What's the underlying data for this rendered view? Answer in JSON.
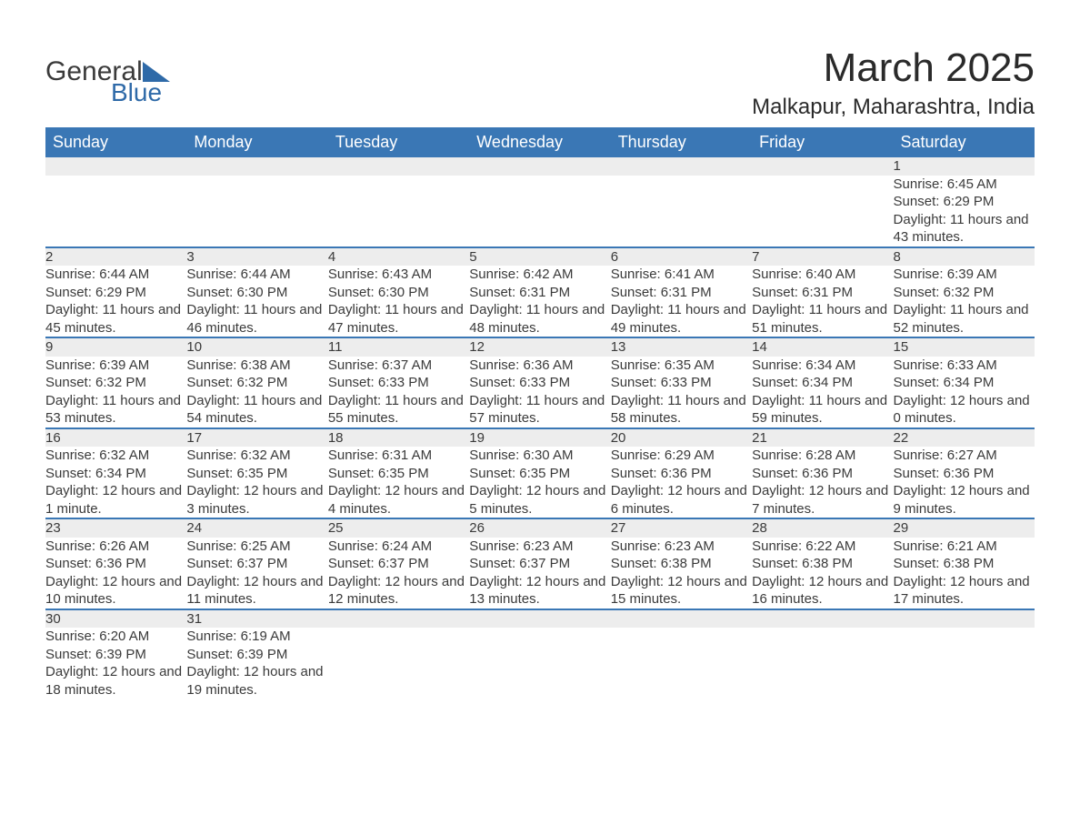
{
  "logo": {
    "text_top": "General",
    "text_bottom": "Blue",
    "accent_color": "#2f6aa8"
  },
  "title": "March 2025",
  "location": "Malkapur, Maharashtra, India",
  "header_bg": "#3a77b5",
  "daynum_bg": "#ededed",
  "row_border": "#3a77b5",
  "text_color": "#3a3a3a",
  "weekdays": [
    "Sunday",
    "Monday",
    "Tuesday",
    "Wednesday",
    "Thursday",
    "Friday",
    "Saturday"
  ],
  "leading_blanks": 6,
  "days": [
    {
      "n": "1",
      "sunrise": "6:45 AM",
      "sunset": "6:29 PM",
      "daylight": "11 hours and 43 minutes."
    },
    {
      "n": "2",
      "sunrise": "6:44 AM",
      "sunset": "6:29 PM",
      "daylight": "11 hours and 45 minutes."
    },
    {
      "n": "3",
      "sunrise": "6:44 AM",
      "sunset": "6:30 PM",
      "daylight": "11 hours and 46 minutes."
    },
    {
      "n": "4",
      "sunrise": "6:43 AM",
      "sunset": "6:30 PM",
      "daylight": "11 hours and 47 minutes."
    },
    {
      "n": "5",
      "sunrise": "6:42 AM",
      "sunset": "6:31 PM",
      "daylight": "11 hours and 48 minutes."
    },
    {
      "n": "6",
      "sunrise": "6:41 AM",
      "sunset": "6:31 PM",
      "daylight": "11 hours and 49 minutes."
    },
    {
      "n": "7",
      "sunrise": "6:40 AM",
      "sunset": "6:31 PM",
      "daylight": "11 hours and 51 minutes."
    },
    {
      "n": "8",
      "sunrise": "6:39 AM",
      "sunset": "6:32 PM",
      "daylight": "11 hours and 52 minutes."
    },
    {
      "n": "9",
      "sunrise": "6:39 AM",
      "sunset": "6:32 PM",
      "daylight": "11 hours and 53 minutes."
    },
    {
      "n": "10",
      "sunrise": "6:38 AM",
      "sunset": "6:32 PM",
      "daylight": "11 hours and 54 minutes."
    },
    {
      "n": "11",
      "sunrise": "6:37 AM",
      "sunset": "6:33 PM",
      "daylight": "11 hours and 55 minutes."
    },
    {
      "n": "12",
      "sunrise": "6:36 AM",
      "sunset": "6:33 PM",
      "daylight": "11 hours and 57 minutes."
    },
    {
      "n": "13",
      "sunrise": "6:35 AM",
      "sunset": "6:33 PM",
      "daylight": "11 hours and 58 minutes."
    },
    {
      "n": "14",
      "sunrise": "6:34 AM",
      "sunset": "6:34 PM",
      "daylight": "11 hours and 59 minutes."
    },
    {
      "n": "15",
      "sunrise": "6:33 AM",
      "sunset": "6:34 PM",
      "daylight": "12 hours and 0 minutes."
    },
    {
      "n": "16",
      "sunrise": "6:32 AM",
      "sunset": "6:34 PM",
      "daylight": "12 hours and 1 minute."
    },
    {
      "n": "17",
      "sunrise": "6:32 AM",
      "sunset": "6:35 PM",
      "daylight": "12 hours and 3 minutes."
    },
    {
      "n": "18",
      "sunrise": "6:31 AM",
      "sunset": "6:35 PM",
      "daylight": "12 hours and 4 minutes."
    },
    {
      "n": "19",
      "sunrise": "6:30 AM",
      "sunset": "6:35 PM",
      "daylight": "12 hours and 5 minutes."
    },
    {
      "n": "20",
      "sunrise": "6:29 AM",
      "sunset": "6:36 PM",
      "daylight": "12 hours and 6 minutes."
    },
    {
      "n": "21",
      "sunrise": "6:28 AM",
      "sunset": "6:36 PM",
      "daylight": "12 hours and 7 minutes."
    },
    {
      "n": "22",
      "sunrise": "6:27 AM",
      "sunset": "6:36 PM",
      "daylight": "12 hours and 9 minutes."
    },
    {
      "n": "23",
      "sunrise": "6:26 AM",
      "sunset": "6:36 PM",
      "daylight": "12 hours and 10 minutes."
    },
    {
      "n": "24",
      "sunrise": "6:25 AM",
      "sunset": "6:37 PM",
      "daylight": "12 hours and 11 minutes."
    },
    {
      "n": "25",
      "sunrise": "6:24 AM",
      "sunset": "6:37 PM",
      "daylight": "12 hours and 12 minutes."
    },
    {
      "n": "26",
      "sunrise": "6:23 AM",
      "sunset": "6:37 PM",
      "daylight": "12 hours and 13 minutes."
    },
    {
      "n": "27",
      "sunrise": "6:23 AM",
      "sunset": "6:38 PM",
      "daylight": "12 hours and 15 minutes."
    },
    {
      "n": "28",
      "sunrise": "6:22 AM",
      "sunset": "6:38 PM",
      "daylight": "12 hours and 16 minutes."
    },
    {
      "n": "29",
      "sunrise": "6:21 AM",
      "sunset": "6:38 PM",
      "daylight": "12 hours and 17 minutes."
    },
    {
      "n": "30",
      "sunrise": "6:20 AM",
      "sunset": "6:39 PM",
      "daylight": "12 hours and 18 minutes."
    },
    {
      "n": "31",
      "sunrise": "6:19 AM",
      "sunset": "6:39 PM",
      "daylight": "12 hours and 19 minutes."
    }
  ],
  "labels": {
    "sunrise": "Sunrise: ",
    "sunset": "Sunset: ",
    "daylight": "Daylight: "
  }
}
